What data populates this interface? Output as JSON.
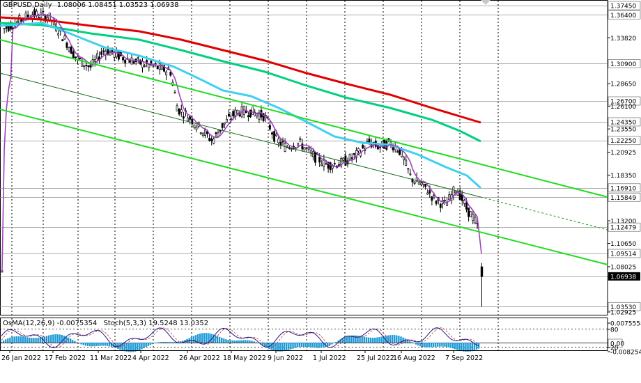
{
  "header": {
    "symbol": "GBPUSD,Daily",
    "ohlc": "1.08006 1.08451 1.03523 1.06938"
  },
  "oscillator_header": {
    "osma": "OsMA(12,26,9) -0.0075354",
    "stoch": "Stoch(5,3,3) 19.5248 13.0352"
  },
  "colors": {
    "background": "#ffffff",
    "grid": "#000000",
    "ma_red": "#e00000",
    "ma_green": "#00d080",
    "ma_cyan": "#40d0f0",
    "ma_purple": "#a040c0",
    "channel_green": "#20dd20",
    "osma_bars": "#1e9bd7",
    "stoch_main": "#1a1a8a",
    "stoch_signal": "#c83232",
    "current_price_bg": "#000000",
    "label_text": "#000000"
  },
  "chart_data": {
    "type": "candlestick",
    "symbol": "GBPUSD",
    "timeframe": "Daily",
    "current_price": 1.06938,
    "price_axis_labels": [
      "1.37450",
      "1.36400",
      "1.33820",
      "1.30900",
      "1.28650",
      "1.26700",
      "1.26100",
      "1.24350",
      "1.23550",
      "1.22250",
      "1.20925",
      "1.18350",
      "1.16910",
      "1.15849",
      "1.13200",
      "1.12479",
      "1.10650",
      "1.09514",
      "1.08025",
      "1.06938",
      "1.03530",
      "1.02925"
    ],
    "price_labels_boxed": [
      "1.37450",
      "1.36400",
      "1.30900",
      "1.26700",
      "1.24350",
      "1.22250",
      "1.16910",
      "1.15849",
      "1.12479",
      "1.09514",
      "1.06938",
      "1.03530"
    ],
    "date_labels": [
      "26 Jan 2022",
      "17 Feb 2022",
      "11 Mar 2022",
      "4 Apr 2022",
      "26 Apr 2022",
      "18 May 2022",
      "9 Jun 2022",
      "1 Jul 2022",
      "25 Jul 2022",
      "16 Aug 2022",
      "7 Sep 2022"
    ],
    "oscillator_axis_labels": [
      "0.0075558",
      "80",
      "0.00",
      "20",
      "-0.008254"
    ],
    "ylim": [
      1.02925,
      1.3745
    ],
    "grid": true
  }
}
